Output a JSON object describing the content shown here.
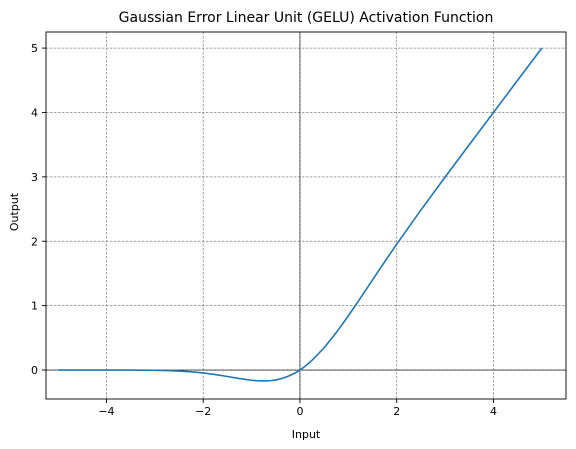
{
  "chart_data": {
    "type": "line",
    "title": "Gaussian Error Linear Unit (GELU) Activation Function",
    "xlabel": "Input",
    "ylabel": "Output",
    "xlim": [
      -5.25,
      5.5
    ],
    "ylim": [
      -0.45,
      5.25
    ],
    "x_ticks": [
      -4,
      -2,
      0,
      2,
      4
    ],
    "x_tick_labels": [
      "−4",
      "−2",
      "0",
      "2",
      "4"
    ],
    "y_ticks": [
      0,
      1,
      2,
      3,
      4,
      5
    ],
    "y_tick_labels": [
      "0",
      "1",
      "2",
      "3",
      "4",
      "5"
    ],
    "grid": true,
    "reference_lines": {
      "x": 0,
      "y": 0
    },
    "series": [
      {
        "color": "#1f77b4",
        "x": [
          -5,
          -4.5,
          -4,
          -3.5,
          -3,
          -2.75,
          -2.5,
          -2.25,
          -2,
          -1.75,
          -1.5,
          -1.25,
          -1,
          -0.9,
          -0.75,
          -0.6,
          -0.5,
          -0.4,
          -0.25,
          -0.1,
          0,
          0.1,
          0.25,
          0.5,
          0.75,
          1,
          1.25,
          1.5,
          1.75,
          2,
          2.5,
          3,
          3.5,
          4,
          4.5,
          5
        ],
        "y": [
          0,
          0,
          -0.0001,
          -0.0008,
          -0.004,
          -0.0082,
          -0.0155,
          -0.0274,
          -0.0455,
          -0.0702,
          -0.1002,
          -0.132,
          -0.1587,
          -0.1656,
          -0.17,
          -0.1646,
          -0.1543,
          -0.1379,
          -0.0987,
          -0.046,
          0,
          0.054,
          0.1513,
          0.3457,
          0.58,
          0.8413,
          1.118,
          1.3998,
          1.6798,
          1.9545,
          2.4845,
          2.996,
          3.4992,
          3.9999,
          4.5,
          5.0
        ]
      }
    ]
  }
}
